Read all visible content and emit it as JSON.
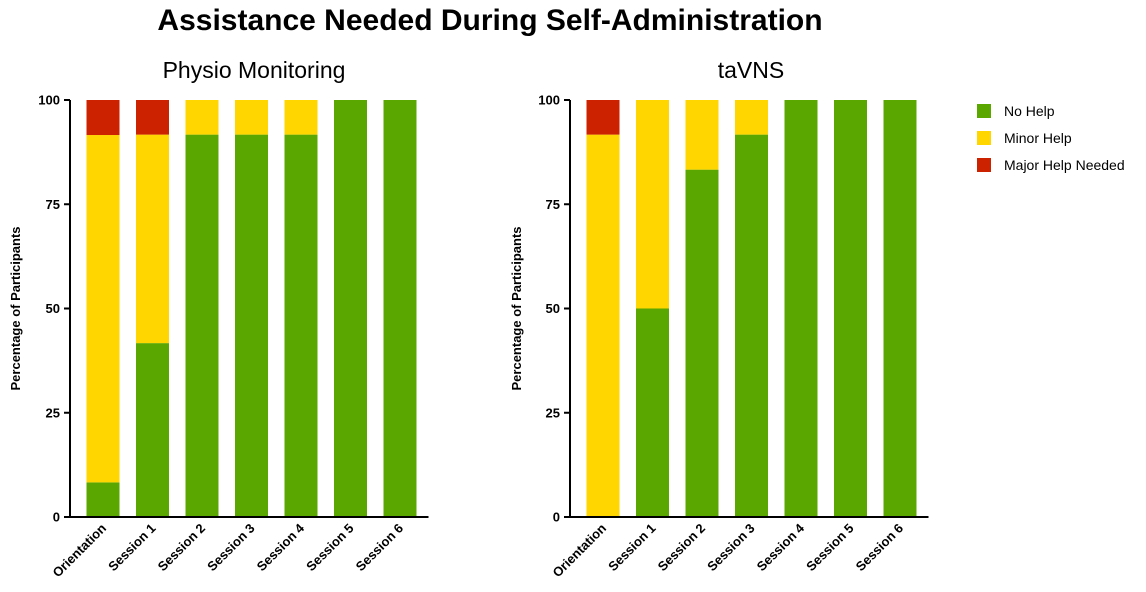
{
  "title": "Assistance Needed During Self-Administration",
  "colors": {
    "No Help": "#5aa700",
    "Minor Help": "#ffd600",
    "Major Help Needed": "#cc2200"
  },
  "legend": [
    "No Help",
    "Minor Help",
    "Major Help Needed"
  ],
  "chart_data": [
    {
      "type": "bar",
      "stacked": true,
      "title": "Physio Monitoring",
      "xlabel": "",
      "ylabel": "Percentage of Participants",
      "ylim": [
        0,
        100
      ],
      "yticks": [
        0,
        25,
        50,
        75,
        100
      ],
      "categories": [
        "Orientation",
        "Session 1",
        "Session 2",
        "Session 3",
        "Session 4",
        "Session 5",
        "Session 6"
      ],
      "series": [
        {
          "name": "No Help",
          "values": [
            8.3,
            41.7,
            91.7,
            91.7,
            91.7,
            100,
            100
          ]
        },
        {
          "name": "Minor Help",
          "values": [
            83.3,
            50,
            8.3,
            8.3,
            8.3,
            0,
            0
          ]
        },
        {
          "name": "Major Help Needed",
          "values": [
            8.4,
            8.3,
            0,
            0,
            0,
            0,
            0
          ]
        }
      ]
    },
    {
      "type": "bar",
      "stacked": true,
      "title": "taVNS",
      "xlabel": "",
      "ylabel": "Percentage of Participants",
      "ylim": [
        0,
        100
      ],
      "yticks": [
        0,
        25,
        50,
        75,
        100
      ],
      "categories": [
        "Orientation",
        "Session 1",
        "Session 2",
        "Session 3",
        "Session 4",
        "Session 5",
        "Session 6"
      ],
      "series": [
        {
          "name": "No Help",
          "values": [
            0,
            50,
            83.3,
            91.7,
            100,
            100,
            100
          ]
        },
        {
          "name": "Minor Help",
          "values": [
            91.7,
            50,
            16.7,
            8.3,
            0,
            0,
            0
          ]
        },
        {
          "name": "Major Help Needed",
          "values": [
            8.3,
            0,
            0,
            0,
            0,
            0,
            0
          ]
        }
      ]
    }
  ]
}
